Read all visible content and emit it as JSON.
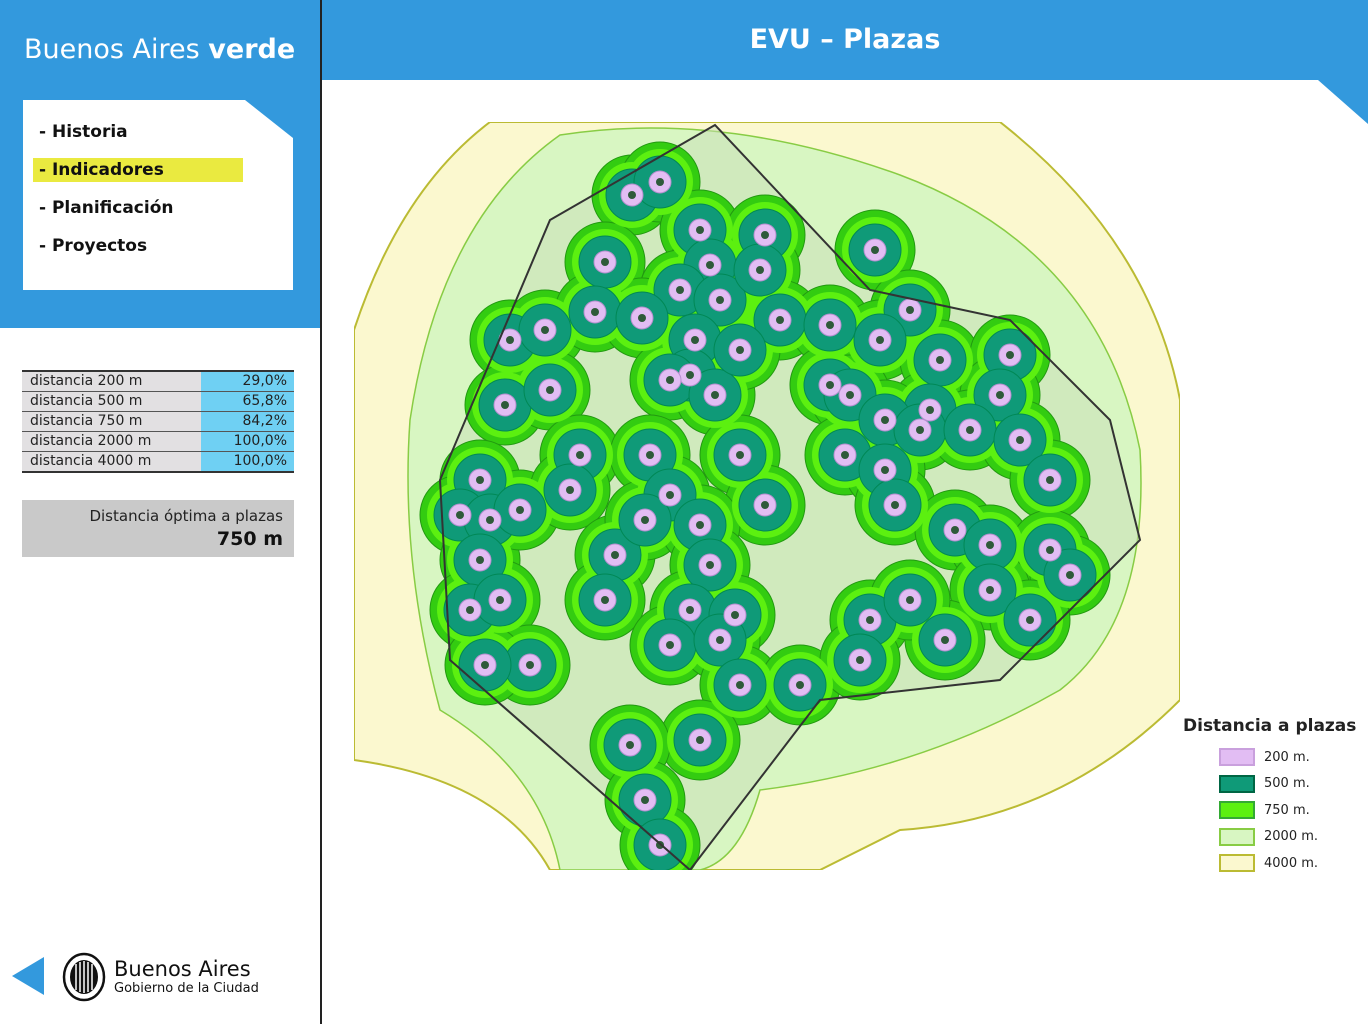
{
  "sidebar": {
    "brand": "Buenos Aires",
    "brand_bold": "verde",
    "menu": [
      "- Historia",
      "- Indicadores",
      "- Planificación",
      "- Proyectos"
    ],
    "active_menu": 1,
    "table": {
      "rows": [
        [
          "distancia 200 m",
          "29,0%"
        ],
        [
          "distancia 500 m",
          "65,8%"
        ],
        [
          "distancia 750 m",
          "84,2%"
        ],
        [
          "distancia 2000 m",
          "100,0%"
        ],
        [
          "distancia 4000 m",
          "100,0%"
        ]
      ]
    },
    "optimal": {
      "label": "Distancia óptima a plazas",
      "value": "750 m"
    },
    "footer": {
      "name": "Buenos Aires",
      "subtitle": "Gobierno de la Ciudad"
    }
  },
  "header": {
    "title": "EVU – Plazas"
  },
  "legend": {
    "title": "Distancia a plazas",
    "items": [
      {
        "label": "200 m.",
        "color": "#e2bdf3",
        "stroke": "#c9a0dd"
      },
      {
        "label": "500 m.",
        "color": "#0f9a78",
        "stroke": "#064"
      },
      {
        "label": "750 m.",
        "color": "#5cf010",
        "stroke": "#3a3"
      },
      {
        "label": "2000 m.",
        "color": "#d8f6c2",
        "stroke": "#8c4"
      },
      {
        "label": "4000 m.",
        "color": "#fbf8cf",
        "stroke": "#bb3"
      }
    ]
  }
}
